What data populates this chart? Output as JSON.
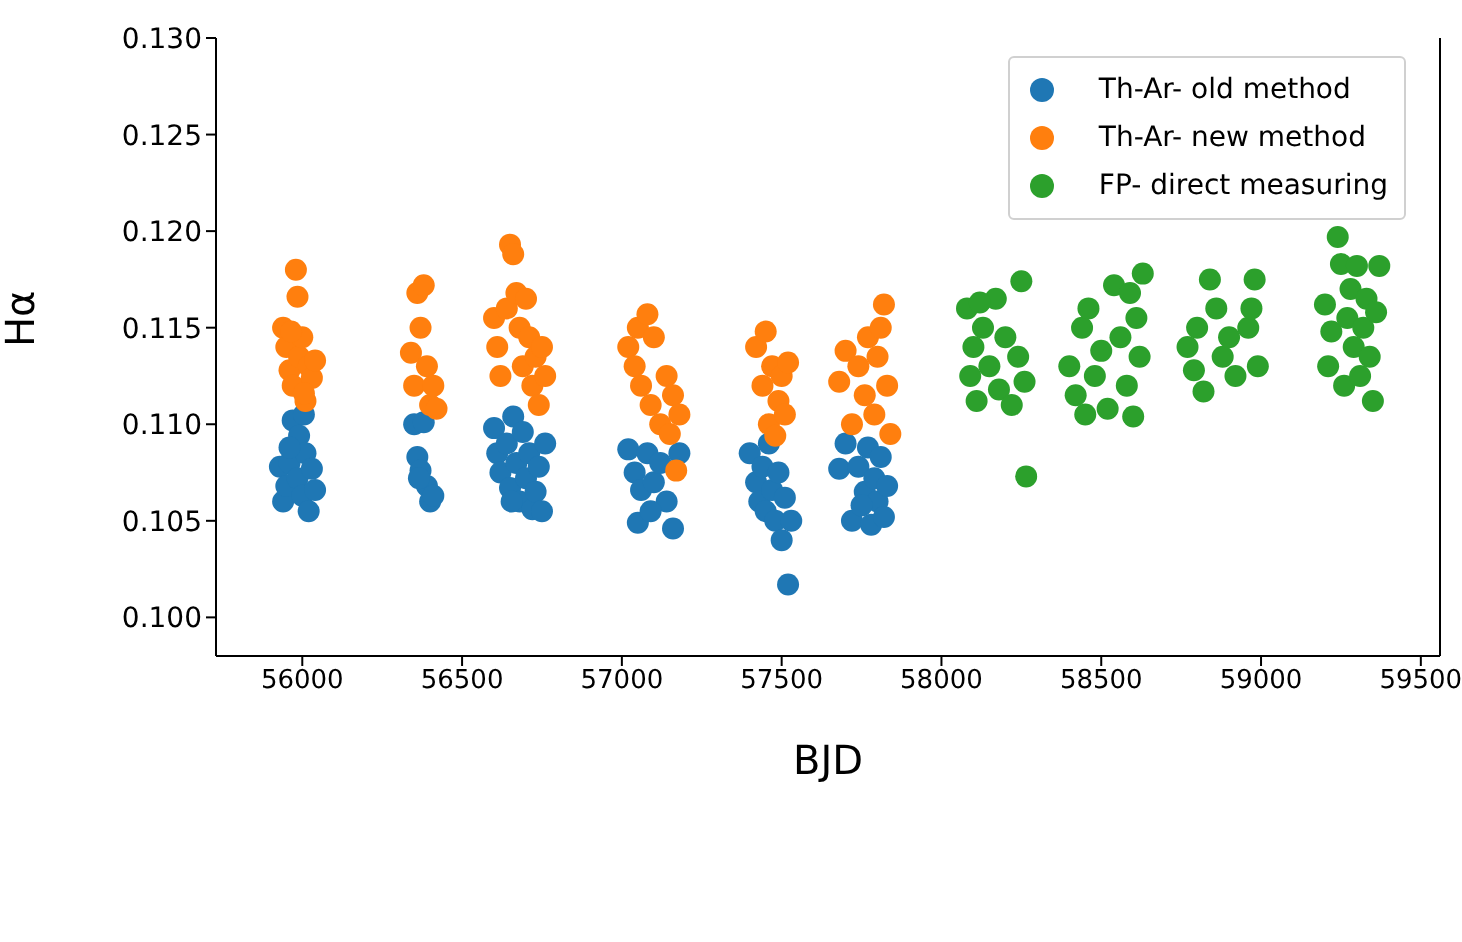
{
  "chart_data": {
    "type": "scatter",
    "xlabel": "BJD",
    "ylabel": "Hα",
    "xlim": [
      55730,
      59560
    ],
    "xticks": [
      56000,
      56500,
      57000,
      57500,
      58000,
      58500,
      59000,
      59500
    ],
    "ylim": [
      0.098,
      0.13
    ],
    "yticks": [
      {
        "value": 0.1,
        "label": "0.100"
      },
      {
        "value": 0.105,
        "label": "0.105"
      },
      {
        "value": 0.11,
        "label": "0.110"
      },
      {
        "value": 0.115,
        "label": "0.115"
      },
      {
        "value": 0.12,
        "label": "0.120"
      },
      {
        "value": 0.125,
        "label": "0.125"
      },
      {
        "value": 0.13,
        "label": "0.130"
      }
    ],
    "grid": false,
    "legend": "top right",
    "marker": "circle",
    "series": [
      {
        "name": "Th-Ar- old method",
        "color": "#1f77b4",
        "x": [
          55930,
          55940,
          55950,
          55960,
          55970,
          55985,
          55990,
          56000,
          56010,
          56020,
          56030,
          56040,
          55960,
          56005,
          56350,
          56360,
          56370,
          56380,
          56390,
          56400,
          56410,
          56365,
          56600,
          56610,
          56620,
          56640,
          56650,
          56660,
          56670,
          56680,
          56690,
          56700,
          56710,
          56720,
          56730,
          56740,
          56750,
          56760,
          56655,
          57020,
          57040,
          57050,
          57060,
          57080,
          57100,
          57120,
          57140,
          57160,
          57170,
          57180,
          57090,
          57400,
          57420,
          57430,
          57440,
          57450,
          57460,
          57470,
          57480,
          57490,
          57500,
          57510,
          57520,
          57530,
          57680,
          57700,
          57720,
          57740,
          57760,
          57770,
          57780,
          57790,
          57800,
          57810,
          57820,
          57830,
          57750
        ],
        "values": [
          0.1078,
          0.106,
          0.1068,
          0.108,
          0.1102,
          0.1072,
          0.1094,
          0.1063,
          0.1085,
          0.1055,
          0.1077,
          0.1066,
          0.1088,
          0.1105,
          0.11,
          0.1083,
          0.1076,
          0.1101,
          0.1068,
          0.106,
          0.1063,
          0.1072,
          0.1098,
          0.1085,
          0.1075,
          0.109,
          0.1067,
          0.1104,
          0.108,
          0.106,
          0.1096,
          0.1072,
          0.1085,
          0.1056,
          0.1065,
          0.1078,
          0.1055,
          0.109,
          0.106,
          0.1087,
          0.1075,
          0.1049,
          0.1066,
          0.1085,
          0.107,
          0.108,
          0.106,
          0.1046,
          null,
          0.1085,
          0.1055,
          0.1085,
          0.107,
          0.106,
          0.1078,
          0.1055,
          0.109,
          0.1066,
          0.105,
          0.1075,
          0.104,
          0.1062,
          0.1017,
          0.105,
          0.1077,
          0.109,
          0.105,
          0.1078,
          0.1065,
          0.1088,
          0.1048,
          0.1072,
          0.106,
          0.1083,
          0.1052,
          0.1068,
          0.1058
        ]
      },
      {
        "name": "Th-Ar- new method",
        "color": "#ff7f0e",
        "x": [
          55940,
          55950,
          55960,
          55970,
          55980,
          55985,
          55990,
          56000,
          56010,
          56020,
          56030,
          56040,
          55965,
          56005,
          56340,
          56350,
          56360,
          56370,
          56380,
          56390,
          56400,
          56410,
          56420,
          56600,
          56610,
          56620,
          56640,
          56650,
          56660,
          56670,
          56680,
          56690,
          56700,
          56710,
          56720,
          56730,
          56740,
          56750,
          56760,
          57020,
          57040,
          57050,
          57060,
          57080,
          57090,
          57100,
          57120,
          57140,
          57150,
          57160,
          57170,
          57180,
          57420,
          57440,
          57450,
          57460,
          57470,
          57480,
          57490,
          57500,
          57510,
          57520,
          57680,
          57700,
          57720,
          57740,
          57760,
          57770,
          57790,
          57800,
          57810,
          57820,
          57830,
          57840
        ],
        "values": [
          0.115,
          0.114,
          0.1128,
          0.112,
          0.118,
          0.1166,
          0.1135,
          0.1145,
          0.1112,
          0.113,
          0.1124,
          0.1133,
          0.1148,
          0.1116,
          0.1137,
          0.112,
          0.1168,
          0.115,
          0.1172,
          0.113,
          0.111,
          0.112,
          0.1108,
          0.1155,
          0.114,
          0.1125,
          0.116,
          0.1193,
          0.1188,
          0.1168,
          0.115,
          0.113,
          0.1165,
          0.1145,
          0.112,
          0.1135,
          0.111,
          0.114,
          0.1125,
          0.114,
          0.113,
          0.115,
          0.112,
          0.1157,
          0.111,
          0.1145,
          0.11,
          0.1125,
          0.1095,
          0.1115,
          0.1076,
          0.1105,
          0.114,
          0.112,
          0.1148,
          0.11,
          0.113,
          0.1094,
          0.1112,
          0.1125,
          0.1105,
          0.1132,
          0.1122,
          0.1138,
          0.11,
          0.113,
          0.1115,
          0.1145,
          0.1105,
          0.1135,
          0.115,
          0.1162,
          0.112,
          0.1095
        ]
      },
      {
        "name": "FP- direct measuring",
        "color": "#2ca02c",
        "x": [
          58080,
          58090,
          58100,
          58110,
          58130,
          58150,
          58170,
          58180,
          58200,
          58220,
          58240,
          58250,
          58260,
          58265,
          58120,
          58400,
          58420,
          58440,
          58460,
          58480,
          58500,
          58520,
          58540,
          58560,
          58580,
          58600,
          58610,
          58620,
          58630,
          58450,
          58590,
          58770,
          58790,
          58800,
          58820,
          58840,
          58860,
          58880,
          58900,
          58920,
          58960,
          58980,
          58990,
          58970,
          59200,
          59210,
          59220,
          59240,
          59250,
          59260,
          59270,
          59280,
          59290,
          59300,
          59310,
          59320,
          59330,
          59340,
          59350,
          59360,
          59370
        ],
        "values": [
          0.116,
          0.1125,
          0.114,
          0.1112,
          0.115,
          0.113,
          0.1165,
          0.1118,
          0.1145,
          0.111,
          0.1135,
          0.1174,
          0.1122,
          0.1073,
          0.1163,
          0.113,
          0.1115,
          0.115,
          0.116,
          0.1125,
          0.1138,
          0.1108,
          0.1172,
          0.1145,
          0.112,
          0.1104,
          0.1155,
          0.1135,
          0.1178,
          0.1105,
          0.1168,
          0.114,
          0.1128,
          0.115,
          0.1117,
          0.1175,
          0.116,
          0.1135,
          0.1145,
          0.1125,
          0.115,
          0.1175,
          0.113,
          0.116,
          0.1162,
          0.113,
          0.1148,
          0.1197,
          0.1183,
          0.112,
          0.1155,
          0.117,
          0.114,
          0.1182,
          0.1125,
          0.115,
          0.1165,
          0.1135,
          0.1112,
          0.1158,
          0.1182
        ]
      }
    ]
  }
}
